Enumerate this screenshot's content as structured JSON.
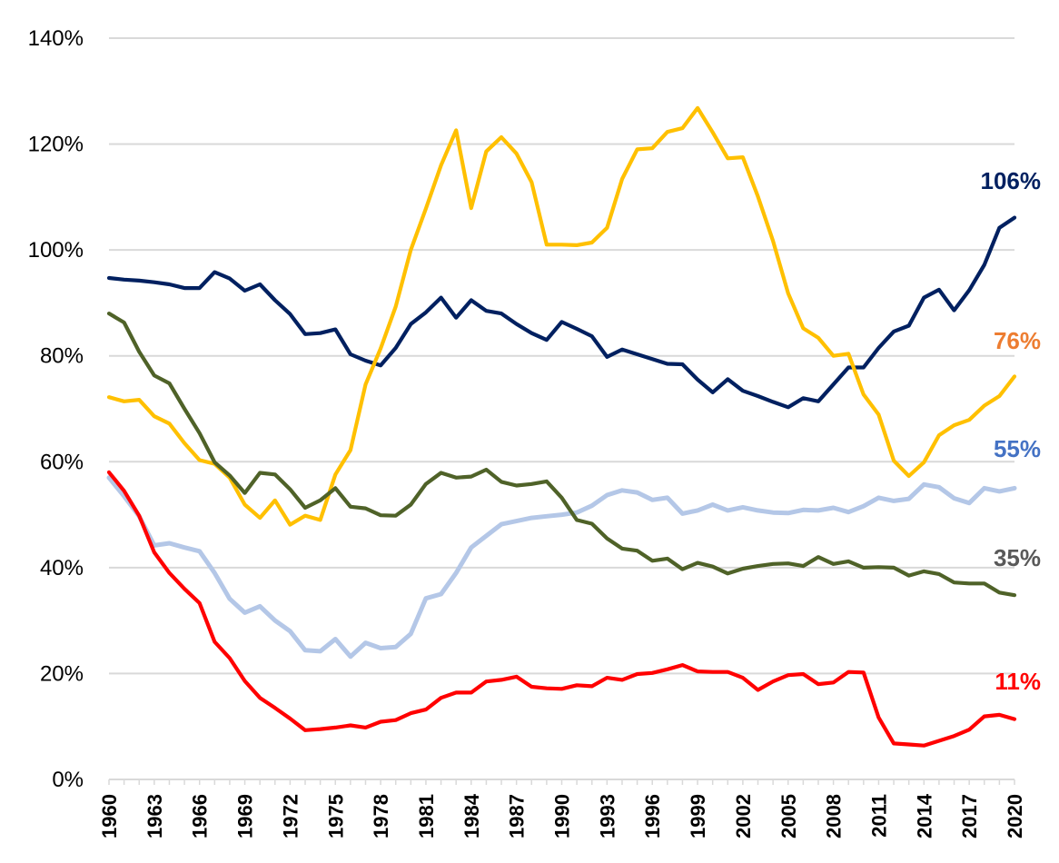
{
  "chart_data": {
    "type": "line",
    "title": "",
    "xlabel": "",
    "ylabel": "",
    "ylim": [
      0,
      140
    ],
    "y_ticks": [
      "0%",
      "20%",
      "40%",
      "60%",
      "80%",
      "100%",
      "120%",
      "140%"
    ],
    "y_tick_values": [
      0,
      20,
      40,
      60,
      80,
      100,
      120,
      140
    ],
    "x": [
      1960,
      1961,
      1962,
      1963,
      1964,
      1965,
      1966,
      1967,
      1968,
      1969,
      1970,
      1971,
      1972,
      1973,
      1974,
      1975,
      1976,
      1977,
      1978,
      1979,
      1980,
      1981,
      1982,
      1983,
      1984,
      1985,
      1986,
      1987,
      1988,
      1989,
      1990,
      1991,
      1992,
      1993,
      1994,
      1995,
      1996,
      1997,
      1998,
      1999,
      2000,
      2001,
      2002,
      2003,
      2004,
      2005,
      2006,
      2007,
      2008,
      2009,
      2010,
      2011,
      2012,
      2013,
      2014,
      2015,
      2016,
      2017,
      2018,
      2019,
      2020
    ],
    "x_ticks": [
      "1960",
      "1963",
      "1966",
      "1969",
      "1972",
      "1975",
      "1978",
      "1981",
      "1984",
      "1987",
      "1990",
      "1993",
      "1996",
      "1999",
      "2002",
      "2005",
      "2008",
      "2011",
      "2014",
      "2017",
      "2020"
    ],
    "grid": true,
    "legend": "none",
    "series": [
      {
        "color": "#002060",
        "end_label": "106%",
        "end_label_color": "#002060",
        "values": [
          94.7,
          94.4,
          94.2,
          93.9,
          93.5,
          92.8,
          92.8,
          95.8,
          94.6,
          92.3,
          93.5,
          90.5,
          87.9,
          84.1,
          84.3,
          85.0,
          80.3,
          79.1,
          78.2,
          81.5,
          86.0,
          88.2,
          91.0,
          87.2,
          90.5,
          88.5,
          88.0,
          86.0,
          84.3,
          83.0,
          86.4,
          85.1,
          83.7,
          79.8,
          81.2,
          80.3,
          79.4,
          78.5,
          78.4,
          75.5,
          73.1,
          75.6,
          73.4,
          72.4,
          71.3,
          70.3,
          72.0,
          71.4,
          74.6,
          77.8,
          77.8,
          81.5,
          84.6,
          85.7,
          91.0,
          92.5,
          88.6,
          92.4,
          97.2,
          104.2,
          106.1
        ]
      },
      {
        "color": "#ffc000",
        "end_label": "76%",
        "end_label_color": "#ed7d31",
        "values": [
          72.2,
          71.4,
          71.7,
          68.6,
          67.2,
          63.5,
          60.3,
          59.6,
          57.0,
          51.9,
          49.4,
          52.7,
          48.1,
          49.8,
          49.0,
          57.6,
          62.2,
          74.6,
          81.4,
          89.3,
          100.0,
          107.8,
          116.0,
          122.6,
          107.9,
          118.6,
          121.3,
          118.2,
          112.8,
          101.0,
          101.0,
          100.9,
          101.4,
          104.2,
          113.4,
          119.0,
          119.2,
          122.3,
          123.0,
          126.8,
          122.2,
          117.3,
          117.5,
          110.1,
          101.7,
          91.8,
          85.2,
          83.4,
          80.0,
          80.4,
          72.7,
          68.9,
          60.2,
          57.3,
          59.9,
          65.0,
          66.9,
          67.9,
          70.6,
          72.4,
          76.1
        ]
      },
      {
        "color": "#b4c7e7",
        "end_label": "55%",
        "end_label_color": "#4472c4",
        "values": [
          57.0,
          53.5,
          49.7,
          44.2,
          44.6,
          43.8,
          43.1,
          39.0,
          34.1,
          31.5,
          32.7,
          30.0,
          28.0,
          24.4,
          24.2,
          26.5,
          23.2,
          25.8,
          24.8,
          25.0,
          27.5,
          34.2,
          35.0,
          39.0,
          43.8,
          46.0,
          48.2,
          48.8,
          49.4,
          49.7,
          50.0,
          50.4,
          51.7,
          53.7,
          54.6,
          54.2,
          52.8,
          53.2,
          50.2,
          50.8,
          51.9,
          50.8,
          51.4,
          50.8,
          50.4,
          50.3,
          50.9,
          50.8,
          51.3,
          50.5,
          51.6,
          53.2,
          52.6,
          53.0,
          55.7,
          55.2,
          53.1,
          52.2,
          55.0,
          54.4,
          55.0
        ]
      },
      {
        "color": "#4f6228",
        "end_label": "35%",
        "end_label_color": "#595959",
        "values": [
          88.0,
          86.3,
          80.8,
          76.3,
          74.8,
          70.0,
          65.4,
          59.9,
          57.4,
          54.1,
          57.9,
          57.6,
          54.8,
          51.3,
          52.7,
          55.0,
          51.5,
          51.2,
          49.9,
          49.8,
          51.9,
          55.8,
          57.9,
          57.0,
          57.2,
          58.5,
          56.2,
          55.5,
          55.8,
          56.3,
          53.2,
          49.0,
          48.3,
          45.5,
          43.6,
          43.2,
          41.3,
          41.7,
          39.7,
          40.9,
          40.2,
          38.9,
          39.8,
          40.3,
          40.7,
          40.8,
          40.3,
          42.0,
          40.7,
          41.2,
          40.0,
          40.1,
          40.0,
          38.5,
          39.3,
          38.8,
          37.2,
          37.0,
          37.0,
          35.3,
          34.8
        ]
      },
      {
        "color": "#ff0000",
        "end_label": "11%",
        "end_label_color": "#ff0000",
        "values": [
          58.0,
          54.5,
          49.8,
          42.9,
          39.0,
          36.0,
          33.3,
          26.0,
          22.9,
          18.6,
          15.4,
          13.5,
          11.5,
          9.3,
          9.5,
          9.8,
          10.2,
          9.8,
          10.9,
          11.2,
          12.5,
          13.2,
          15.4,
          16.4,
          16.4,
          18.5,
          18.8,
          19.4,
          17.5,
          17.2,
          17.1,
          17.8,
          17.6,
          19.2,
          18.8,
          19.9,
          20.1,
          20.8,
          21.6,
          20.4,
          20.3,
          20.3,
          19.2,
          16.9,
          18.5,
          19.7,
          19.9,
          18.0,
          18.3,
          20.3,
          20.2,
          11.7,
          6.8,
          6.6,
          6.4,
          7.3,
          8.2,
          9.4,
          11.9,
          12.2,
          11.4
        ]
      }
    ]
  }
}
